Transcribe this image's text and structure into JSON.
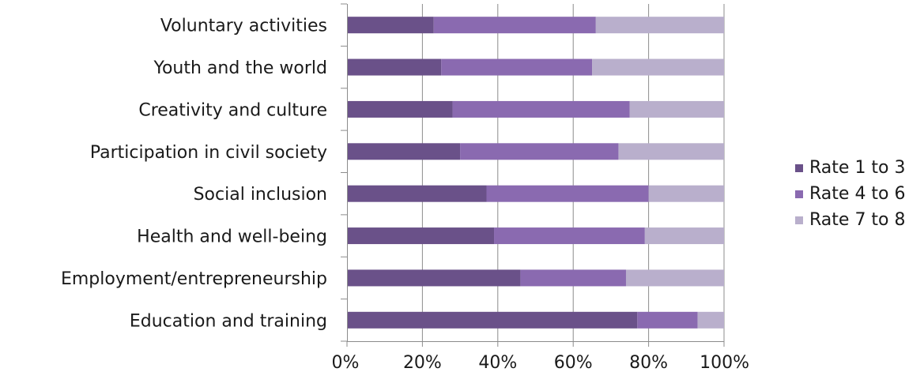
{
  "chart_data": {
    "type": "bar",
    "orientation": "horizontal",
    "stacking": "percent",
    "categories": [
      "Voluntary activities",
      "Youth and the world",
      "Creativity and culture",
      "Participation in civil society",
      "Social inclusion",
      "Health and well-being",
      "Employment/entrepreneurship",
      "Education and training"
    ],
    "series": [
      {
        "name": "Rate 1 to 3",
        "color": "#6a5189",
        "values": [
          23,
          25,
          28,
          30,
          37,
          39,
          46,
          77
        ]
      },
      {
        "name": "Rate 4 to 6",
        "color": "#8a6ab0",
        "values": [
          43,
          40,
          47,
          42,
          43,
          40,
          28,
          16
        ]
      },
      {
        "name": "Rate 7 to 8",
        "color": "#b9afcc",
        "values": [
          34,
          35,
          25,
          28,
          20,
          21,
          26,
          7
        ]
      }
    ],
    "xlim": [
      0,
      100
    ],
    "xticks": [
      "0%",
      "20%",
      "40%",
      "60%",
      "80%",
      "100%"
    ],
    "xtick_values": [
      0,
      20,
      40,
      60,
      80,
      100
    ],
    "grid": "vertical",
    "legend_position": "right",
    "title": "",
    "xlabel": "",
    "ylabel": ""
  }
}
